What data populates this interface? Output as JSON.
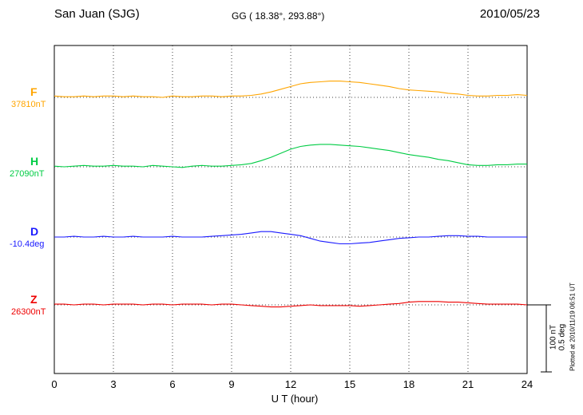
{
  "header": {
    "station": "San Juan (SJG)",
    "coords": "GG ( 18.38°, 293.88°)",
    "date": "2010/05/23"
  },
  "axis": {
    "xlabel": "U T (hour)",
    "ticks": [
      0,
      3,
      6,
      9,
      12,
      15,
      18,
      21,
      24
    ]
  },
  "scale_bar": {
    "label_nt": "100 nT",
    "label_deg": "0.5 deg"
  },
  "footer_note": "Plotted at 2010/11/19 06:51 UT",
  "chart_data": {
    "type": "line",
    "title": "San Juan (SJG) magnetogram 2010/05/23",
    "xlabel": "U T (hour)",
    "ylabel": "",
    "x_range": [
      0,
      24
    ],
    "x_ticks": [
      0,
      3,
      6,
      9,
      12,
      15,
      18,
      21,
      24
    ],
    "x_start": 0,
    "x_step_hours": 0.5,
    "grid": "dotted",
    "value_note": "values are deviations from each component baseline; nT for F/H/Z, degrees for D",
    "scale": {
      "nT_per_bar": 100,
      "deg_per_bar": 0.5
    },
    "series": [
      {
        "name": "F",
        "color": "#FFA500",
        "unit": "nT",
        "baseline_label": "37810nT",
        "baseline_value": 37810,
        "values": [
          2,
          1,
          1,
          2,
          1,
          2,
          2,
          1,
          2,
          1,
          1,
          0,
          2,
          1,
          1,
          2,
          2,
          1,
          2,
          2,
          3,
          5,
          8,
          12,
          16,
          20,
          22,
          23,
          24,
          24,
          23,
          22,
          20,
          18,
          16,
          13,
          11,
          10,
          9,
          8,
          6,
          5,
          3,
          2,
          2,
          3,
          3,
          4,
          3
        ]
      },
      {
        "name": "H",
        "color": "#00CC44",
        "unit": "nT",
        "baseline_label": "27090nT",
        "baseline_value": 27090,
        "values": [
          1,
          0,
          1,
          2,
          1,
          1,
          2,
          1,
          1,
          0,
          2,
          1,
          0,
          -1,
          1,
          2,
          1,
          1,
          2,
          3,
          5,
          9,
          14,
          20,
          26,
          30,
          32,
          33,
          33,
          32,
          31,
          30,
          28,
          26,
          24,
          21,
          18,
          16,
          14,
          11,
          9,
          6,
          3,
          2,
          2,
          3,
          3,
          4,
          4
        ]
      },
      {
        "name": "D",
        "color": "#1a1aff",
        "unit": "deg",
        "baseline_label": "-10.4deg",
        "baseline_value": -10.4,
        "values": [
          0,
          0,
          0.005,
          0,
          0,
          0.005,
          0,
          0,
          0.005,
          0,
          0,
          0,
          0.005,
          0,
          0,
          0,
          0.005,
          0.01,
          0.015,
          0.02,
          0.03,
          0.04,
          0.04,
          0.03,
          0.02,
          0.01,
          -0.01,
          -0.03,
          -0.04,
          -0.05,
          -0.05,
          -0.045,
          -0.04,
          -0.03,
          -0.02,
          -0.01,
          -0.005,
          0,
          0,
          0.005,
          0.01,
          0.01,
          0.005,
          0.005,
          0,
          0,
          0,
          0,
          0
        ]
      },
      {
        "name": "Z",
        "color": "#ee0000",
        "unit": "nT",
        "baseline_label": "26300nT",
        "baseline_value": 26300,
        "values": [
          1,
          1,
          0,
          1,
          1,
          0,
          1,
          1,
          1,
          0,
          1,
          1,
          0,
          1,
          1,
          1,
          0,
          1,
          1,
          0,
          -1,
          -2,
          -3,
          -3,
          -2,
          -1,
          0,
          -1,
          -1,
          -1,
          -1,
          -2,
          -1,
          0,
          1,
          2,
          4,
          5,
          5,
          5,
          4,
          4,
          3,
          2,
          1,
          1,
          1,
          1,
          0
        ]
      }
    ]
  }
}
